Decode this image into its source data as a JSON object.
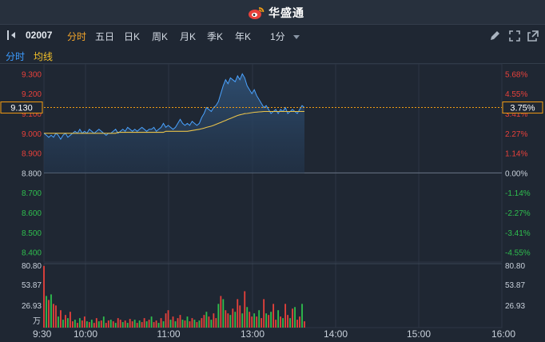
{
  "brand": {
    "name": "华盛通",
    "color": "#e8413b"
  },
  "toolbar": {
    "stock_code": "02007",
    "periods": [
      {
        "label": "分时",
        "active": true
      },
      {
        "label": "五日",
        "active": false
      },
      {
        "label": "日K",
        "active": false
      },
      {
        "label": "周K",
        "active": false
      },
      {
        "label": "月K",
        "active": false
      },
      {
        "label": "季K",
        "active": false
      },
      {
        "label": "年K",
        "active": false
      }
    ],
    "interval": "1分",
    "icons": [
      "collapse-panel-icon",
      "pencil-icon",
      "fullscreen-icon",
      "popout-icon"
    ]
  },
  "legend": {
    "fenshi": "分时",
    "junxian": "均线"
  },
  "chart_data": {
    "type": "line",
    "title": "",
    "prev_close": 8.8,
    "current_price": "9.130",
    "current_change": "3.75%",
    "price_ticks": [
      "9.300",
      "9.200",
      "9.100",
      "9.000",
      "8.900",
      "8.800",
      "8.700",
      "8.600",
      "8.500",
      "8.400"
    ],
    "pct_ticks": [
      "5.68%",
      "4.55%",
      "3.41%",
      "2.27%",
      "1.14%",
      "0.00%",
      "-1.14%",
      "-2.27%",
      "-3.41%",
      "-4.55%"
    ],
    "time_ticks": [
      "9:30",
      "10:00",
      "11:00",
      "13:00",
      "14:00",
      "15:00",
      "16:00"
    ],
    "ylim": [
      8.35,
      9.35
    ],
    "volume_unit": "万",
    "volume_ticks": [
      "80.80",
      "53.87",
      "26.93"
    ],
    "volume_ylim": [
      0,
      80.8
    ],
    "colors": {
      "up": "#e8413b",
      "down": "#2fbf4e",
      "price_line": "#4aa3ff",
      "avg_line": "#e8c24a",
      "current": "#f39c12"
    },
    "series": [
      {
        "name": "分时",
        "values": [
          9.0,
          8.99,
          8.98,
          8.99,
          8.98,
          9.0,
          8.99,
          8.97,
          8.99,
          9.0,
          8.98,
          8.99,
          9.0,
          9.01,
          9.0,
          9.02,
          9.0,
          9.01,
          9.0,
          9.02,
          9.01,
          9.0,
          9.01,
          9.02,
          9.01,
          9.0,
          8.99,
          9.0,
          9.0,
          9.01,
          9.02,
          9.0,
          9.01,
          9.02,
          9.01,
          9.03,
          9.02,
          9.01,
          9.02,
          9.01,
          9.02,
          9.03,
          9.02,
          9.01,
          9.02,
          9.02,
          9.03,
          9.01,
          9.02,
          9.03,
          9.05,
          9.03,
          9.04,
          9.03,
          9.02,
          9.03,
          9.05,
          9.07,
          9.05,
          9.04,
          9.05,
          9.04,
          9.06,
          9.05,
          9.04,
          9.05,
          9.08,
          9.1,
          9.13,
          9.12,
          9.11,
          9.13,
          9.14,
          9.16,
          9.2,
          9.24,
          9.27,
          9.25,
          9.28,
          9.27,
          9.26,
          9.29,
          9.27,
          9.3,
          9.28,
          9.24,
          9.22,
          9.2,
          9.22,
          9.19,
          9.17,
          9.15,
          9.13,
          9.14,
          9.12,
          9.1,
          9.11,
          9.12,
          9.1,
          9.12,
          9.11,
          9.13,
          9.1,
          9.11,
          9.12,
          9.11,
          9.1,
          9.12,
          9.14,
          9.13
        ]
      },
      {
        "name": "均线",
        "values": [
          9.0,
          9.0,
          9.0,
          9.0,
          9.0,
          9.0,
          9.0,
          9.0,
          9.0,
          9.0,
          9.0,
          9.0,
          9.0,
          9.0,
          9.0,
          9.0,
          9.0,
          9.0,
          9.0,
          9.0,
          9.0,
          9.0,
          9.0,
          9.0,
          9.0,
          9.0,
          9.0,
          9.0,
          9.0,
          9.0,
          9.0,
          9.005,
          9.005,
          9.005,
          9.005,
          9.005,
          9.005,
          9.005,
          9.005,
          9.005,
          9.005,
          9.005,
          9.005,
          9.005,
          9.005,
          9.005,
          9.005,
          9.005,
          9.005,
          9.005,
          9.005,
          9.01,
          9.01,
          9.01,
          9.01,
          9.01,
          9.01,
          9.01,
          9.01,
          9.01,
          9.01,
          9.012,
          9.014,
          9.016,
          9.018,
          9.02,
          9.023,
          9.026,
          9.03,
          9.033,
          9.036,
          9.04,
          9.045,
          9.05,
          9.055,
          9.06,
          9.065,
          9.07,
          9.075,
          9.08,
          9.085,
          9.09,
          9.093,
          9.096,
          9.099,
          9.1,
          9.102,
          9.104,
          9.106,
          9.107,
          9.108,
          9.109,
          9.11,
          9.11,
          9.11,
          9.11,
          9.11,
          9.11,
          9.11,
          9.11,
          9.11,
          9.11,
          9.11,
          9.11,
          9.11,
          9.11,
          9.11,
          9.11,
          9.11,
          9.11
        ]
      }
    ],
    "volume": [
      78,
      40,
      35,
      42,
      30,
      28,
      14,
      22,
      10,
      16,
      12,
      20,
      8,
      10,
      6,
      12,
      9,
      14,
      8,
      7,
      10,
      6,
      12,
      8,
      9,
      14,
      6,
      9,
      10,
      8,
      6,
      12,
      10,
      7,
      9,
      6,
      11,
      8,
      10,
      6,
      9,
      7,
      12,
      8,
      10,
      14,
      7,
      9,
      6,
      12,
      8,
      18,
      22,
      10,
      14,
      8,
      12,
      16,
      10,
      9,
      14,
      8,
      12,
      10,
      7,
      9,
      12,
      16,
      20,
      14,
      10,
      18,
      12,
      30,
      40,
      36,
      22,
      18,
      16,
      24,
      20,
      36,
      28,
      18,
      46,
      26,
      20,
      14,
      18,
      14,
      22,
      12,
      36,
      18,
      16,
      20,
      30,
      10,
      22,
      14,
      12,
      30,
      16,
      12,
      24,
      26,
      10,
      14,
      30,
      8
    ],
    "volume_up": [
      1,
      0,
      1,
      0,
      1,
      1,
      0,
      1,
      0,
      1,
      0,
      1,
      1,
      0,
      1,
      0,
      1,
      1,
      0,
      1,
      0,
      1,
      1,
      0,
      1,
      0,
      1,
      1,
      0,
      1,
      0,
      1,
      1,
      0,
      1,
      0,
      1,
      1,
      0,
      1,
      0,
      1,
      1,
      0,
      1,
      0,
      1,
      1,
      0,
      1,
      0,
      1,
      1,
      0,
      1,
      0,
      1,
      1,
      0,
      1,
      0,
      1,
      1,
      0,
      1,
      0,
      1,
      1,
      0,
      1,
      0,
      1,
      1,
      0,
      1,
      0,
      1,
      1,
      0,
      1,
      0,
      1,
      1,
      0,
      1,
      0,
      1,
      1,
      0,
      1,
      0,
      1,
      1,
      0,
      1,
      0,
      1,
      1,
      0,
      1,
      0,
      1,
      1,
      0,
      1,
      0,
      1,
      1,
      0,
      1
    ]
  }
}
